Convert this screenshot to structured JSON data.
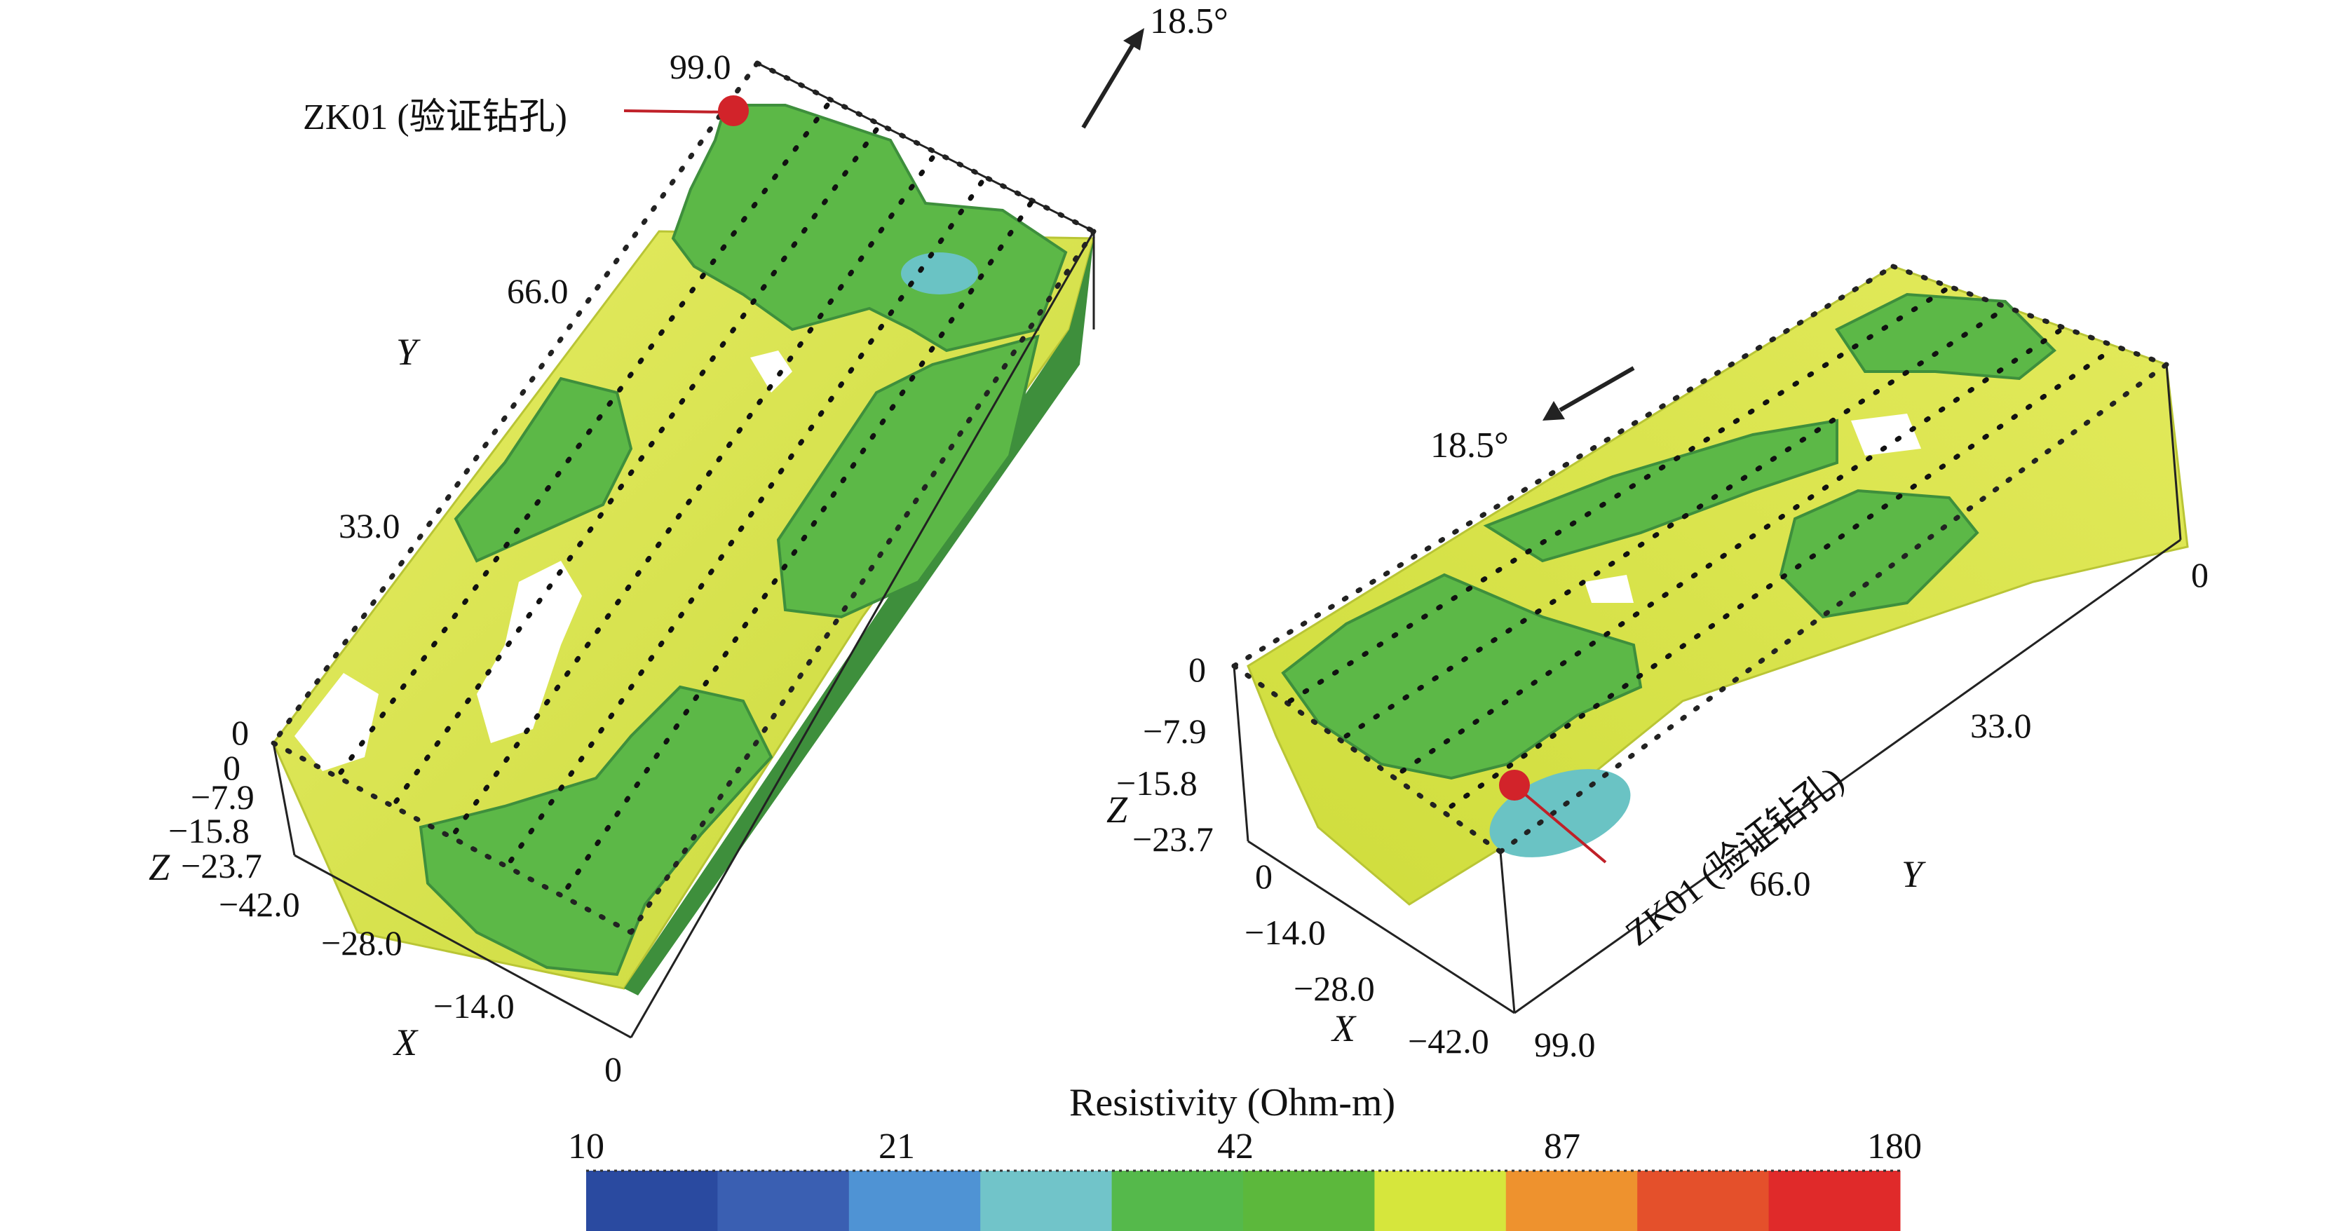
{
  "left_view": {
    "y_ticks": [
      "99.0",
      "66.0",
      "33.0",
      "0"
    ],
    "z_ticks": [
      "0",
      "−7.9",
      "−15.8",
      "−23.7"
    ],
    "x_ticks": [
      "−42.0",
      "−28.0",
      "−14.0",
      "0"
    ],
    "axis_x": "X",
    "axis_y": "Y",
    "axis_z": "Z",
    "borehole_label": "ZK01 (验证钻孔)",
    "north_label": "18.5°"
  },
  "right_view": {
    "z_ticks": [
      "0",
      "−7.9",
      "−15.8",
      "−23.7"
    ],
    "x_ticks": [
      "0",
      "−14.0",
      "−28.0",
      "−42.0"
    ],
    "y_ticks": [
      "0",
      "33.0",
      "66.0",
      "99.0"
    ],
    "axis_x": "X",
    "axis_y": "Y",
    "axis_z": "Z",
    "borehole_label": "ZK01 (验证钻孔)",
    "north_label": "18.5°"
  },
  "colorbar": {
    "title": "Resistivity (Ohm-m)",
    "tick_labels": [
      "10",
      "21",
      "42",
      "87",
      "180"
    ],
    "colors": [
      "#2a4aa0",
      "#3a5fb2",
      "#4f93d4",
      "#71c4c9",
      "#55b94b",
      "#5cb83c",
      "#d6e63c",
      "#ee922e",
      "#e4502b",
      "#e02a2a"
    ]
  },
  "colors": {
    "surface_yellow": "#dbe64a",
    "surface_green": "#5cb847",
    "surface_dark_green": "#3e8f3c",
    "surface_cyan": "#6ac3c4",
    "marker_red": "#d2232a"
  }
}
